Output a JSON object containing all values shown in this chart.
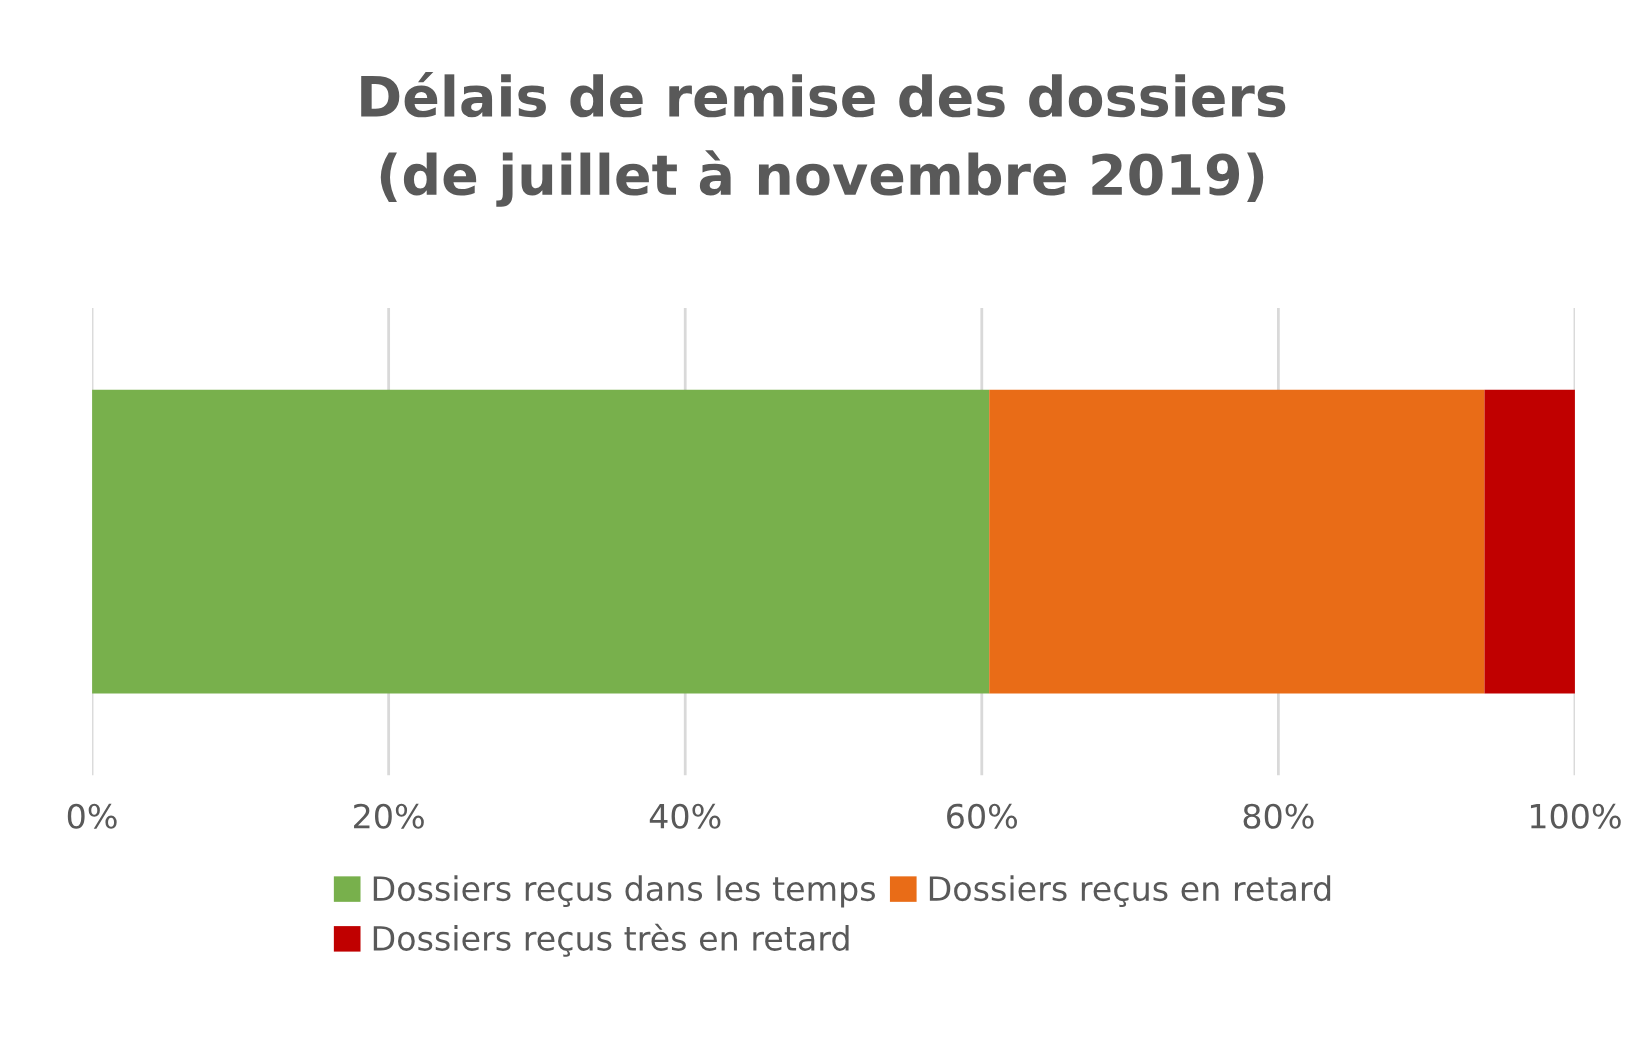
{
  "chart_data": {
    "type": "bar",
    "orientation": "horizontal",
    "stacked": true,
    "title": "Délais de remise des dossiers\n(de juillet à novembre 2019)",
    "categories": [
      null
    ],
    "series": [
      {
        "name": "Dossiers reçus dans les temps",
        "color": "#78b04c",
        "values": [
          60.5
        ]
      },
      {
        "name": "Dossiers reçus en retard",
        "color": "#e96c17",
        "values": [
          33.4
        ]
      },
      {
        "name": "Dossiers reçus très en retard",
        "color": "#c00000",
        "values": [
          6.1
        ]
      }
    ],
    "xlim": [
      0,
      100
    ],
    "xticks": [
      {
        "value": 0,
        "label": "0%"
      },
      {
        "value": 20,
        "label": "20%"
      },
      {
        "value": 40,
        "label": "40%"
      },
      {
        "value": 60,
        "label": "60%"
      },
      {
        "value": 80,
        "label": "80%"
      },
      {
        "value": 100,
        "label": "100%"
      }
    ],
    "grid": "x",
    "legend": "bottom",
    "tick_labels": "x"
  }
}
